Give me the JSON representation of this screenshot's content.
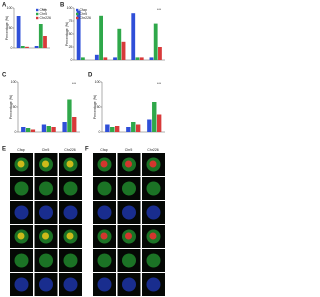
{
  "panels": {
    "letters": [
      "A",
      "B",
      "C",
      "D",
      "E",
      "F"
    ],
    "columns": [
      "Cfap",
      "Chr5",
      "Chr226"
    ]
  },
  "chart_data": [
    {
      "type": "bar",
      "categories": [
        null,
        null
      ],
      "ylim": [
        0,
        100
      ],
      "yticks": [
        0,
        50,
        100
      ],
      "ylabel": "Percentage (%)",
      "series": [
        {
          "name": "Cfap",
          "color": "#2f4fd8",
          "values": [
            80,
            5
          ]
        },
        {
          "name": "Chr5",
          "color": "#2fa84a",
          "values": [
            5,
            60
          ]
        },
        {
          "name": "Chr226",
          "color": "#d83a3a",
          "values": [
            3,
            30
          ]
        }
      ],
      "annotation": "***"
    },
    {
      "type": "bar",
      "categories": [
        null,
        null,
        null,
        null,
        null
      ],
      "ylim": [
        0,
        100
      ],
      "yticks": [
        0,
        25,
        50,
        75,
        100
      ],
      "ylabel": "Percentage (%)",
      "series": [
        {
          "name": "Cfap",
          "color": "#2f4fd8",
          "values": [
            95,
            10,
            5,
            90,
            5
          ]
        },
        {
          "name": "Chr5",
          "color": "#2fa84a",
          "values": [
            5,
            85,
            60,
            5,
            70
          ]
        },
        {
          "name": "Chr226",
          "color": "#d83a3a",
          "values": [
            0,
            5,
            35,
            5,
            25
          ]
        }
      ],
      "annotation": "***"
    },
    {
      "type": "bar",
      "categories": [
        null,
        null,
        null
      ],
      "ylim": [
        0,
        100
      ],
      "yticks": [
        0,
        50,
        100
      ],
      "ylabel": "Percentage (%)",
      "series": [
        {
          "name": "Cfap",
          "color": "#2f4fd8",
          "values": [
            10,
            15,
            20
          ]
        },
        {
          "name": "Chr5",
          "color": "#2fa84a",
          "values": [
            8,
            12,
            65
          ]
        },
        {
          "name": "Chr226",
          "color": "#d83a3a",
          "values": [
            5,
            10,
            30
          ]
        }
      ],
      "annotation": "***"
    },
    {
      "type": "bar",
      "categories": [
        null,
        null,
        null
      ],
      "ylim": [
        0,
        100
      ],
      "yticks": [
        0,
        50,
        100
      ],
      "ylabel": "Percentage (%)",
      "series": [
        {
          "name": "Cfap",
          "color": "#2f4fd8",
          "values": [
            15,
            10,
            25
          ]
        },
        {
          "name": "Chr5",
          "color": "#2fa84a",
          "values": [
            10,
            20,
            60
          ]
        },
        {
          "name": "Chr226",
          "color": "#d83a3a",
          "values": [
            12,
            15,
            35
          ]
        }
      ],
      "annotation": "***"
    }
  ]
}
